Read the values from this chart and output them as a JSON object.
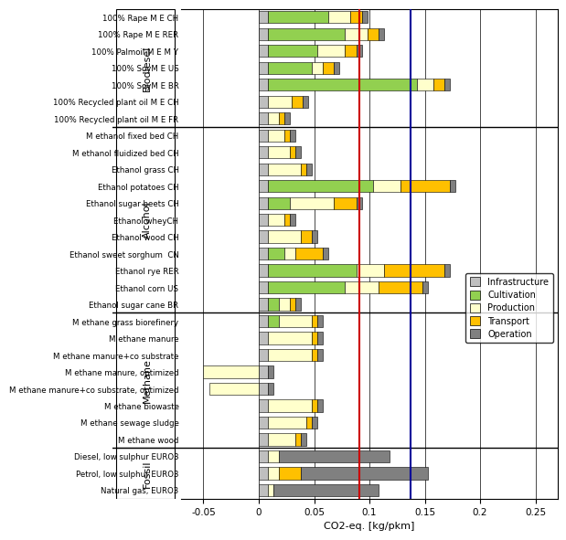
{
  "categories": [
    "100% Rape M E CH",
    "100% Rape M E RER",
    "100% Palmoil M E M Y",
    "100% SoyM E US",
    "100% SoyM E BR",
    "100% Recycled plant oil M E CH",
    "100% Recycled plant oil M E FR",
    "M ethanol fixed bed CH",
    "M ethanol fluidized bed CH",
    "Ethanol grass CH",
    "Ethanol potatoes CH",
    "Ethanol sugar beets CH",
    "Ethanol wheyCH",
    "Ethanol wood CH",
    "Ethanol sweet sorghum  CN",
    "Ethanol rye RER",
    "Ethanol corn US",
    "Ethanol sugar cane BR",
    "M ethane grass biorefinery",
    "M ethane manure",
    "M ethane manure+co substrate",
    "M ethane manure, optimized",
    "M ethane manure+co substrate, optimized",
    "M ethane biowaste",
    "M ethane sewage sludge",
    "M ethane wood",
    "Diesel, low sulphur EURO3",
    "Petrol, low sulphur EURO3",
    "Natural gas, EURO3"
  ],
  "groups": [
    "Biodiesel",
    "Biodiesel",
    "Biodiesel",
    "Biodiesel",
    "Biodiesel",
    "Biodiesel",
    "Biodiesel",
    "Alcohol",
    "Alcohol",
    "Alcohol",
    "Alcohol",
    "Alcohol",
    "Alcohol",
    "Alcohol",
    "Alcohol",
    "Alcohol",
    "Alcohol",
    "Alcohol",
    "Methane",
    "Methane",
    "Methane",
    "Methane",
    "Methane",
    "Methane",
    "Methane",
    "Methane",
    "Fossil",
    "Fossil",
    "Fossil"
  ],
  "infrastructure": [
    0.008,
    0.008,
    0.008,
    0.008,
    0.008,
    0.008,
    0.008,
    0.008,
    0.008,
    0.008,
    0.008,
    0.008,
    0.008,
    0.008,
    0.008,
    0.008,
    0.008,
    0.008,
    0.008,
    0.008,
    0.008,
    0.008,
    0.008,
    0.008,
    0.008,
    0.008,
    0.008,
    0.008,
    0.008
  ],
  "cultivation": [
    0.055,
    0.07,
    0.045,
    0.04,
    0.135,
    0.0,
    0.0,
    0.0,
    0.0,
    0.0,
    0.095,
    0.02,
    0.0,
    0.0,
    0.015,
    0.08,
    0.07,
    0.01,
    0.01,
    0.0,
    0.0,
    0.0,
    0.0,
    0.0,
    0.0,
    0.0,
    0.0,
    0.0,
    0.0
  ],
  "production": [
    0.02,
    0.02,
    0.025,
    0.01,
    0.015,
    0.022,
    0.01,
    0.015,
    0.02,
    0.03,
    0.025,
    0.04,
    0.015,
    0.03,
    0.01,
    0.025,
    0.03,
    0.01,
    0.03,
    0.04,
    0.04,
    -0.05,
    -0.045,
    0.04,
    0.035,
    0.025,
    0.01,
    0.01,
    0.005
  ],
  "transport": [
    0.01,
    0.01,
    0.01,
    0.01,
    0.01,
    0.01,
    0.005,
    0.005,
    0.005,
    0.005,
    0.045,
    0.02,
    0.005,
    0.01,
    0.025,
    0.055,
    0.04,
    0.005,
    0.005,
    0.005,
    0.005,
    0.0,
    0.0,
    0.005,
    0.005,
    0.005,
    0.0,
    0.02,
    0.0
  ],
  "operation": [
    0.005,
    0.005,
    0.005,
    0.005,
    0.005,
    0.005,
    0.005,
    0.005,
    0.005,
    0.005,
    0.005,
    0.005,
    0.005,
    0.005,
    0.005,
    0.005,
    0.005,
    0.005,
    0.005,
    0.005,
    0.005,
    0.005,
    0.005,
    0.005,
    0.005,
    0.005,
    0.1,
    0.115,
    0.095
  ],
  "colors": {
    "Infrastructure": "#bfbfbf",
    "Cultivation": "#92d050",
    "Production": "#ffffcc",
    "Transport": "#ffc000",
    "Operation": "#808080"
  },
  "ref_line_red": 0.091,
  "ref_line_blue": 0.137,
  "xlim_min": -0.07,
  "xlim_max": 0.27,
  "xticks": [
    -0.05,
    0.0,
    0.05,
    0.1,
    0.15,
    0.2,
    0.25
  ],
  "xlabel": "CO2-eq. [kg/pkm]",
  "group_labels": [
    "Biodiesel",
    "Alcohol",
    "Methane",
    "Fossil"
  ],
  "group_row_ranges": [
    [
      0,
      6
    ],
    [
      7,
      17
    ],
    [
      18,
      25
    ],
    [
      26,
      28
    ]
  ],
  "separators_after": [
    6,
    17,
    25
  ],
  "legend_items": [
    "Infrastructure",
    "Cultivation",
    "Production",
    "Transport",
    "Operation"
  ]
}
